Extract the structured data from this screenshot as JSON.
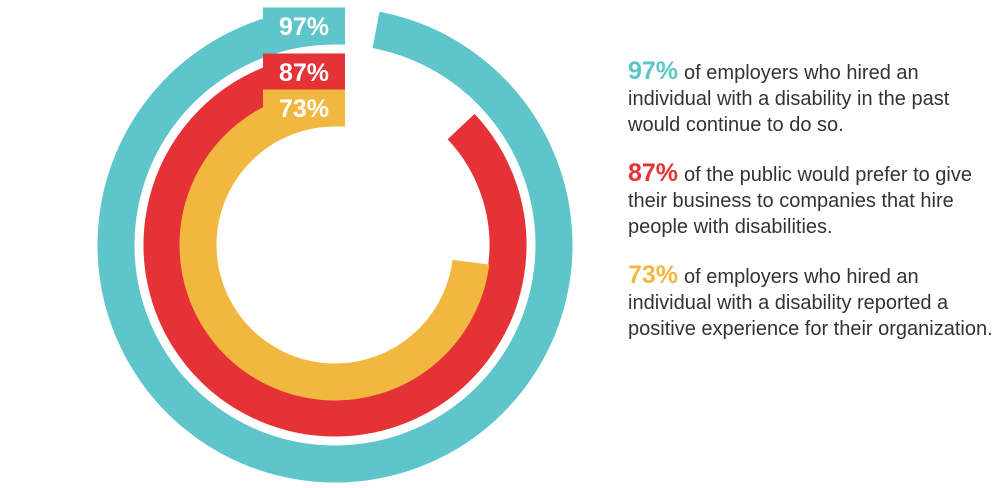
{
  "chart_data": {
    "type": "radial_bar",
    "categories": [
      "of employers who hired an individual with a disability in the past would continue to do so.",
      "of the public would prefer to give their business to companies that hire people with disabilities.",
      "of employers who hired an individual with a disability reported a positive experience for their organization."
    ],
    "values": [
      97,
      87,
      73
    ],
    "value_labels": [
      "97%",
      "87%",
      "73%"
    ],
    "colors": [
      "#5ec5ca",
      "#e53236",
      "#f2b73f"
    ],
    "ylim": [
      0,
      100
    ]
  }
}
